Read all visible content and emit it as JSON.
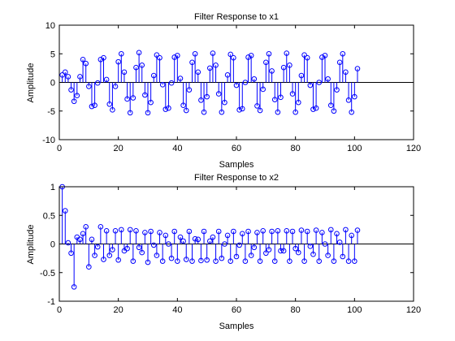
{
  "figure": {
    "background": "#ffffff"
  },
  "colors": {
    "stem": "#0000ff",
    "axis": "#000000",
    "plot_bg": "#ffffff"
  },
  "chart_data": [
    {
      "type": "stem",
      "title": "Filter Response to x1",
      "xlabel": "Samples",
      "ylabel": "Amplitude",
      "xlim": [
        0,
        120
      ],
      "ylim": [
        -10,
        10
      ],
      "xticks": [
        0,
        20,
        40,
        60,
        80,
        100,
        120
      ],
      "yticks": [
        -10,
        -5,
        0,
        5,
        10
      ],
      "grid": false,
      "series": [
        {
          "x": [
            1,
            2,
            3,
            4,
            5,
            6,
            7,
            8,
            9,
            10,
            11,
            12,
            13,
            14,
            15,
            16,
            17,
            18,
            19,
            20,
            21,
            22,
            23,
            24,
            25,
            26,
            27,
            28,
            29,
            30,
            31,
            32,
            33,
            34,
            35,
            36,
            37,
            38,
            39,
            40,
            41,
            42,
            43,
            44,
            45,
            46,
            47,
            48,
            49,
            50,
            51,
            52,
            53,
            54,
            55,
            56,
            57,
            58,
            59,
            60,
            61,
            62,
            63,
            64,
            65,
            66,
            67,
            68,
            69,
            70,
            71,
            72,
            73,
            74,
            75,
            76,
            77,
            78,
            79,
            80,
            81,
            82,
            83,
            84,
            85,
            86,
            87,
            88,
            89,
            90,
            91,
            92,
            93,
            94,
            95,
            96,
            97,
            98,
            99,
            100,
            101
          ],
          "values": [
            1.3,
            1.8,
            1.0,
            -1.3,
            -3.3,
            -2.3,
            1.0,
            4.0,
            3.3,
            -0.7,
            -4.2,
            -4.0,
            -0.1,
            4.0,
            4.3,
            0.5,
            -3.8,
            -4.8,
            -0.7,
            3.6,
            5.0,
            1.8,
            -2.9,
            -5.3,
            -2.7,
            2.6,
            5.2,
            3.0,
            -2.2,
            -5.3,
            -3.5,
            1.2,
            4.8,
            4.3,
            -0.4,
            -4.7,
            -4.5,
            -0.1,
            4.4,
            4.7,
            0.7,
            -4.0,
            -4.9,
            -1.3,
            3.5,
            5.0,
            1.8,
            -3.1,
            -5.2,
            -2.5,
            2.5,
            5.1,
            3.0,
            -2.0,
            -5.2,
            -3.5,
            1.3,
            4.9,
            4.3,
            -0.5,
            -4.8,
            -4.6,
            0.0,
            4.4,
            4.7,
            0.6,
            -4.1,
            -4.9,
            -1.2,
            3.5,
            5.0,
            2.0,
            -3.0,
            -5.2,
            -2.6,
            2.6,
            5.1,
            3.0,
            -2.0,
            -5.2,
            -3.5,
            1.2,
            4.8,
            4.3,
            -0.5,
            -4.7,
            -4.5,
            0.0,
            4.4,
            4.7,
            0.6,
            -4.0,
            -5.0,
            -1.3,
            3.5,
            5.0,
            1.8,
            -3.1,
            -5.2,
            -2.5,
            2.4
          ]
        }
      ]
    },
    {
      "type": "stem",
      "title": "Filter Response to x2",
      "xlabel": "Samples",
      "ylabel": "Amplitude",
      "xlim": [
        0,
        120
      ],
      "ylim": [
        -1,
        1
      ],
      "xticks": [
        0,
        20,
        40,
        60,
        80,
        100,
        120
      ],
      "yticks": [
        -1,
        -0.5,
        0,
        0.5,
        1
      ],
      "grid": false,
      "series": [
        {
          "x": [
            1,
            2,
            3,
            4,
            5,
            6,
            7,
            8,
            9,
            10,
            11,
            12,
            13,
            14,
            15,
            16,
            17,
            18,
            19,
            20,
            21,
            22,
            23,
            24,
            25,
            26,
            27,
            28,
            29,
            30,
            31,
            32,
            33,
            34,
            35,
            36,
            37,
            38,
            39,
            40,
            41,
            42,
            43,
            44,
            45,
            46,
            47,
            48,
            49,
            50,
            51,
            52,
            53,
            54,
            55,
            56,
            57,
            58,
            59,
            60,
            61,
            62,
            63,
            64,
            65,
            66,
            67,
            68,
            69,
            70,
            71,
            72,
            73,
            74,
            75,
            76,
            77,
            78,
            79,
            80,
            81,
            82,
            83,
            84,
            85,
            86,
            87,
            88,
            89,
            90,
            91,
            92,
            93,
            94,
            95,
            96,
            97,
            98,
            99,
            100,
            101
          ],
          "values": [
            1.0,
            0.58,
            0.02,
            -0.16,
            -0.75,
            0.12,
            0.08,
            0.18,
            0.3,
            -0.4,
            0.08,
            -0.2,
            -0.05,
            0.3,
            -0.27,
            0.23,
            -0.2,
            -0.1,
            0.23,
            -0.28,
            0.25,
            -0.12,
            -0.08,
            0.25,
            -0.3,
            0.23,
            -0.06,
            -0.15,
            0.2,
            -0.32,
            0.22,
            -0.02,
            -0.2,
            0.2,
            -0.3,
            0.15,
            0.0,
            -0.25,
            0.22,
            -0.3,
            0.12,
            0.05,
            -0.27,
            0.22,
            -0.3,
            0.09,
            0.08,
            -0.29,
            0.22,
            -0.28,
            0.05,
            0.12,
            -0.3,
            0.22,
            -0.25,
            0.0,
            0.15,
            -0.3,
            0.22,
            -0.22,
            -0.02,
            0.18,
            -0.3,
            0.22,
            -0.2,
            -0.06,
            0.2,
            -0.3,
            0.23,
            -0.16,
            -0.1,
            0.22,
            -0.3,
            0.23,
            -0.12,
            -0.12,
            0.23,
            -0.3,
            0.22,
            -0.08,
            -0.15,
            0.24,
            -0.3,
            0.22,
            -0.04,
            -0.18,
            0.24,
            -0.3,
            0.2,
            0.0,
            -0.2,
            0.25,
            -0.3,
            0.18,
            0.03,
            -0.22,
            0.25,
            -0.3,
            0.15,
            -0.3,
            0.24
          ]
        }
      ]
    }
  ]
}
